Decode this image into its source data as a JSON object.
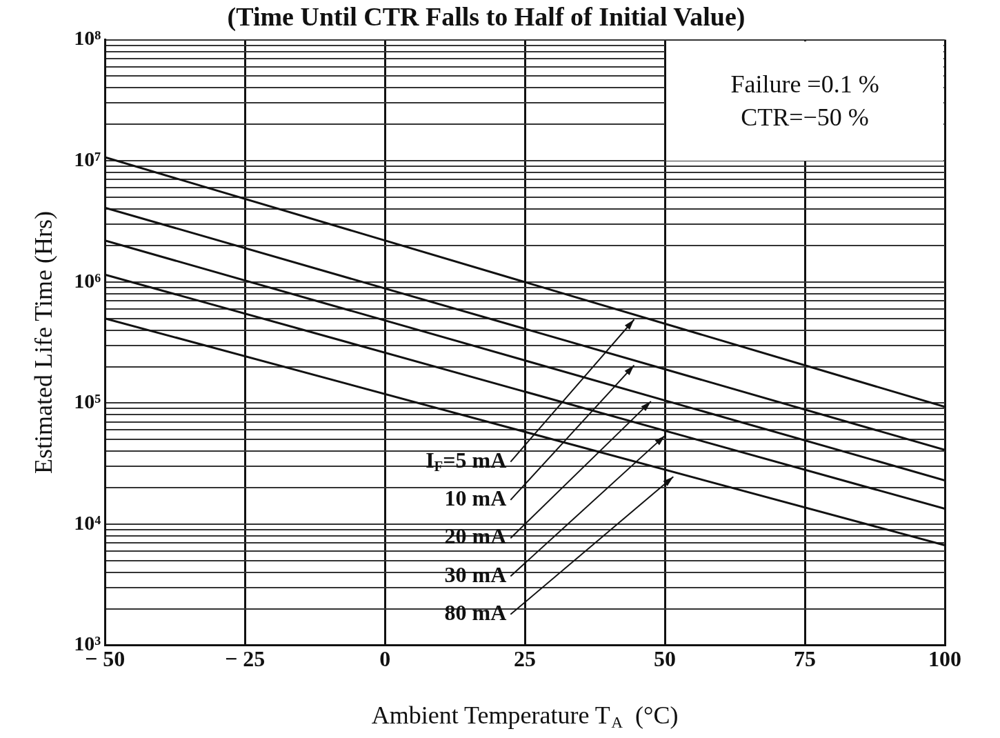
{
  "chart_data": {
    "type": "line",
    "title": "(Time Until CTR Falls to Half of Initial Value)",
    "xlabel": "Ambient Temperature T$_{A}$  (°C)",
    "ylabel": "Estimated Life Time (Hrs)",
    "annotations": [
      "Failure =0.1 %",
      "CTR=−50 %"
    ],
    "x": [
      -50,
      100
    ],
    "series": [
      {
        "name": "I$_{F}$=5 mA",
        "color": "#111111",
        "values": [
          10700000,
          93000
        ]
      },
      {
        "name": "10 mA",
        "color": "#111111",
        "values": [
          4100000,
          41000
        ]
      },
      {
        "name": "20 mA",
        "color": "#111111",
        "values": [
          2200000,
          23000
        ]
      },
      {
        "name": "30 mA",
        "color": "#111111",
        "values": [
          1150000,
          13400
        ]
      },
      {
        "name": "80 mA",
        "color": "#111111",
        "values": [
          500000,
          6700
        ]
      }
    ],
    "log": "y",
    "xlim": [
      -50,
      100
    ],
    "xticks": [
      -50,
      -25,
      0,
      25,
      50,
      75,
      100
    ],
    "ylim": [
      1000,
      100000000
    ],
    "yticks": [
      {
        "value": 1000,
        "label": "10³"
      },
      {
        "value": 2000,
        "label": null
      },
      {
        "value": 3000,
        "label": null
      },
      {
        "value": 4000,
        "label": null
      },
      {
        "value": 5000,
        "label": null
      },
      {
        "value": 6000,
        "label": null
      },
      {
        "value": 7000,
        "label": null
      },
      {
        "value": 8000,
        "label": null
      },
      {
        "value": 9000,
        "label": null
      },
      {
        "value": 10000,
        "label": "10⁴"
      },
      {
        "value": 20000,
        "label": null
      },
      {
        "value": 30000,
        "label": null
      },
      {
        "value": 40000,
        "label": null
      },
      {
        "value": 50000,
        "label": null
      },
      {
        "value": 60000,
        "label": null
      },
      {
        "value": 70000,
        "label": null
      },
      {
        "value": 80000,
        "label": null
      },
      {
        "value": 90000,
        "label": null
      },
      {
        "value": 100000,
        "label": "10⁵"
      },
      {
        "value": 200000,
        "label": null
      },
      {
        "value": 300000,
        "label": null
      },
      {
        "value": 400000,
        "label": null
      },
      {
        "value": 500000,
        "label": null
      },
      {
        "value": 600000,
        "label": null
      },
      {
        "value": 700000,
        "label": null
      },
      {
        "value": 800000,
        "label": null
      },
      {
        "value": 900000,
        "label": null
      },
      {
        "value": 1000000,
        "label": "10⁶"
      },
      {
        "value": 2000000,
        "label": null
      },
      {
        "value": 3000000,
        "label": null
      },
      {
        "value": 4000000,
        "label": null
      },
      {
        "value": 5000000,
        "label": null
      },
      {
        "value": 6000000,
        "label": null
      },
      {
        "value": 7000000,
        "label": null
      },
      {
        "value": 8000000,
        "label": null
      },
      {
        "value": 9000000,
        "label": null
      },
      {
        "value": 10000000,
        "label": "10⁷"
      },
      {
        "value": 20000000,
        "label": null
      },
      {
        "value": 30000000,
        "label": null
      },
      {
        "value": 40000000,
        "label": null
      },
      {
        "value": 50000000,
        "label": null
      },
      {
        "value": 60000000,
        "label": null
      },
      {
        "value": 70000000,
        "label": null
      },
      {
        "value": 80000000,
        "label": null
      },
      {
        "value": 90000000,
        "label": null
      },
      {
        "value": 100000000,
        "label": "10⁸"
      }
    ],
    "grid": true,
    "legend": false,
    "marker": "none",
    "line_style": "solid"
  }
}
